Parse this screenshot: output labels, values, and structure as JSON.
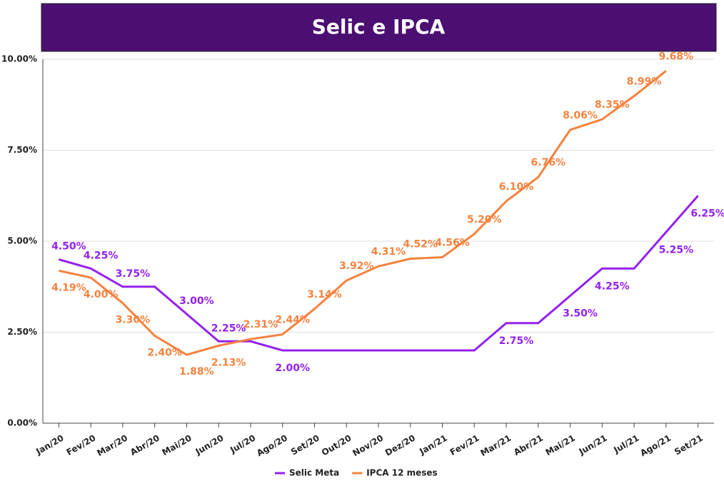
{
  "chart_data": {
    "type": "line",
    "title": "Selic e IPCA",
    "categories": [
      "Jan/20",
      "Fev/20",
      "Mar/20",
      "Abr/20",
      "Mai/20",
      "Jun/20",
      "Jul/20",
      "Ago/20",
      "Set/20",
      "Out/20",
      "Nov/20",
      "Dez/20",
      "Jan/21",
      "Fev/21",
      "Mar/21",
      "Abr/21",
      "Mai/21",
      "Jun/21",
      "Jul/21",
      "Ago/21",
      "Set/21"
    ],
    "series": [
      {
        "name": "Selic Meta",
        "color": "#9421ee",
        "values": [
          4.5,
          4.25,
          3.75,
          3.75,
          3.0,
          2.25,
          2.25,
          2.0,
          2.0,
          2.0,
          2.0,
          2.0,
          2.0,
          2.0,
          2.75,
          2.75,
          3.5,
          4.25,
          4.25,
          5.25,
          6.25
        ],
        "value_labels": [
          "4.50%",
          "4.25%",
          "3.75%",
          null,
          "3.00%",
          "2.25%",
          null,
          "2.00%",
          null,
          null,
          null,
          null,
          null,
          null,
          "2.75%",
          null,
          "3.50%",
          "4.25%",
          null,
          "5.25%",
          "6.25%"
        ]
      },
      {
        "name": "IPCA 12 meses",
        "color": "#f5823e",
        "values": [
          4.19,
          4.0,
          3.3,
          2.4,
          1.88,
          2.13,
          2.31,
          2.44,
          3.14,
          3.92,
          4.31,
          4.52,
          4.56,
          5.2,
          6.1,
          6.76,
          8.06,
          8.35,
          8.99,
          9.68,
          null
        ],
        "value_labels": [
          "4.19%",
          "4.00%",
          "3.30%",
          "2.40%",
          "1.88%",
          "2.13%",
          "2.31%",
          "2.44%",
          "3.14%",
          "3.92%",
          "4.31%",
          "4.52%",
          "4.56%",
          "5.20%",
          "6.10%",
          "6.76%",
          "8.06%",
          "8.35%",
          "8.99%",
          "9.68%",
          null
        ]
      }
    ],
    "ylim": [
      0,
      10
    ],
    "yticks": [
      {
        "value": 0,
        "label": "0.00%"
      },
      {
        "value": 2.5,
        "label": "2.50%"
      },
      {
        "value": 5,
        "label": "5.00%"
      },
      {
        "value": 7.5,
        "label": "7.50%"
      },
      {
        "value": 10,
        "label": "10.00%"
      }
    ],
    "grid": true,
    "legend": "bottom"
  }
}
